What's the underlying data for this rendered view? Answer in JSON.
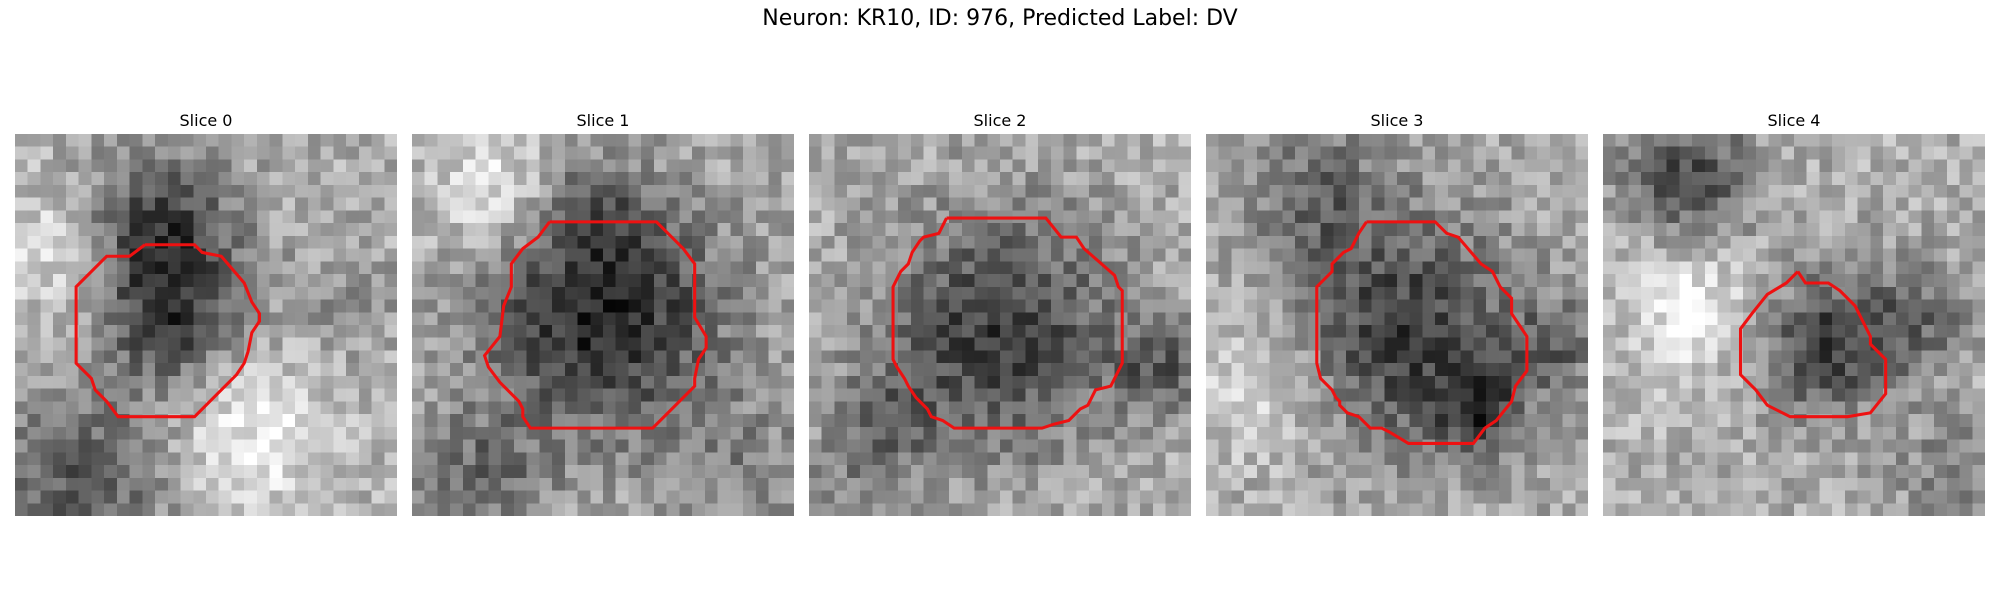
{
  "figure": {
    "title": "Neuron: KR10, ID: 976, Predicted Label: DV"
  },
  "panels": [
    {
      "title": "Slice 0",
      "seed": 11,
      "blobs": [
        [
          0.38,
          0.25,
          0.14,
          -0.45
        ],
        [
          0.42,
          0.5,
          0.13,
          -0.4
        ],
        [
          0.18,
          0.9,
          0.16,
          -0.35
        ],
        [
          0.62,
          0.78,
          0.16,
          0.25
        ],
        [
          0.85,
          0.45,
          0.12,
          -0.1
        ],
        [
          0.1,
          0.3,
          0.12,
          0.2
        ]
      ],
      "contour": [
        [
          0.34,
          0.29
        ],
        [
          0.47,
          0.29
        ],
        [
          0.49,
          0.31
        ],
        [
          0.54,
          0.32
        ],
        [
          0.6,
          0.39
        ],
        [
          0.62,
          0.44
        ],
        [
          0.64,
          0.47
        ],
        [
          0.64,
          0.49
        ],
        [
          0.62,
          0.52
        ],
        [
          0.61,
          0.57
        ],
        [
          0.6,
          0.6
        ],
        [
          0.58,
          0.63
        ],
        [
          0.47,
          0.74
        ],
        [
          0.27,
          0.74
        ],
        [
          0.24,
          0.7
        ],
        [
          0.22,
          0.68
        ],
        [
          0.21,
          0.67
        ],
        [
          0.2,
          0.64
        ],
        [
          0.16,
          0.6
        ],
        [
          0.16,
          0.4
        ],
        [
          0.24,
          0.32
        ],
        [
          0.3,
          0.32
        ],
        [
          0.34,
          0.29
        ]
      ]
    },
    {
      "title": "Slice 1",
      "seed": 23,
      "blobs": [
        [
          0.5,
          0.47,
          0.22,
          -0.55
        ],
        [
          0.48,
          0.18,
          0.08,
          -0.2
        ],
        [
          0.18,
          0.9,
          0.12,
          -0.25
        ],
        [
          0.88,
          0.88,
          0.14,
          -0.15
        ],
        [
          0.22,
          0.15,
          0.12,
          0.25
        ]
      ],
      "contour": [
        [
          0.36,
          0.23
        ],
        [
          0.64,
          0.23
        ],
        [
          0.71,
          0.3
        ],
        [
          0.74,
          0.34
        ],
        [
          0.74,
          0.48
        ],
        [
          0.77,
          0.53
        ],
        [
          0.77,
          0.56
        ],
        [
          0.75,
          0.59
        ],
        [
          0.74,
          0.64
        ],
        [
          0.74,
          0.66
        ],
        [
          0.63,
          0.77
        ],
        [
          0.31,
          0.77
        ],
        [
          0.29,
          0.74
        ],
        [
          0.29,
          0.72
        ],
        [
          0.28,
          0.7
        ],
        [
          0.23,
          0.65
        ],
        [
          0.2,
          0.61
        ],
        [
          0.19,
          0.58
        ],
        [
          0.23,
          0.53
        ],
        [
          0.24,
          0.45
        ],
        [
          0.26,
          0.4
        ],
        [
          0.26,
          0.34
        ],
        [
          0.29,
          0.3
        ],
        [
          0.33,
          0.27
        ],
        [
          0.36,
          0.23
        ]
      ]
    },
    {
      "title": "Slice 2",
      "seed": 37,
      "blobs": [
        [
          0.5,
          0.52,
          0.22,
          -0.45
        ],
        [
          0.92,
          0.62,
          0.08,
          -0.3
        ],
        [
          0.2,
          0.75,
          0.1,
          -0.2
        ],
        [
          0.1,
          0.9,
          0.1,
          -0.1
        ]
      ],
      "contour": [
        [
          0.36,
          0.22
        ],
        [
          0.62,
          0.22
        ],
        [
          0.66,
          0.27
        ],
        [
          0.7,
          0.27
        ],
        [
          0.72,
          0.3
        ],
        [
          0.8,
          0.37
        ],
        [
          0.81,
          0.4
        ],
        [
          0.82,
          0.41
        ],
        [
          0.82,
          0.6
        ],
        [
          0.8,
          0.64
        ],
        [
          0.79,
          0.66
        ],
        [
          0.75,
          0.67
        ],
        [
          0.74,
          0.69
        ],
        [
          0.73,
          0.71
        ],
        [
          0.71,
          0.72
        ],
        [
          0.68,
          0.75
        ],
        [
          0.64,
          0.76
        ],
        [
          0.61,
          0.77
        ],
        [
          0.38,
          0.77
        ],
        [
          0.35,
          0.75
        ],
        [
          0.32,
          0.74
        ],
        [
          0.31,
          0.72
        ],
        [
          0.28,
          0.69
        ],
        [
          0.26,
          0.66
        ],
        [
          0.25,
          0.64
        ],
        [
          0.23,
          0.61
        ],
        [
          0.22,
          0.59
        ],
        [
          0.22,
          0.4
        ],
        [
          0.23,
          0.38
        ],
        [
          0.24,
          0.36
        ],
        [
          0.26,
          0.34
        ],
        [
          0.27,
          0.31
        ],
        [
          0.29,
          0.28
        ],
        [
          0.3,
          0.27
        ],
        [
          0.34,
          0.26
        ],
        [
          0.36,
          0.22
        ]
      ]
    },
    {
      "title": "Slice 3",
      "seed": 53,
      "blobs": [
        [
          0.52,
          0.52,
          0.22,
          -0.45
        ],
        [
          0.72,
          0.72,
          0.08,
          -0.35
        ],
        [
          0.3,
          0.15,
          0.12,
          -0.25
        ],
        [
          0.92,
          0.55,
          0.08,
          -0.25
        ],
        [
          0.15,
          0.65,
          0.14,
          0.2
        ]
      ],
      "contour": [
        [
          0.42,
          0.23
        ],
        [
          0.6,
          0.23
        ],
        [
          0.63,
          0.26
        ],
        [
          0.66,
          0.27
        ],
        [
          0.72,
          0.34
        ],
        [
          0.75,
          0.36
        ],
        [
          0.77,
          0.4
        ],
        [
          0.8,
          0.43
        ],
        [
          0.8,
          0.47
        ],
        [
          0.82,
          0.5
        ],
        [
          0.84,
          0.53
        ],
        [
          0.84,
          0.62
        ],
        [
          0.81,
          0.66
        ],
        [
          0.8,
          0.7
        ],
        [
          0.76,
          0.75
        ],
        [
          0.73,
          0.77
        ],
        [
          0.7,
          0.81
        ],
        [
          0.53,
          0.81
        ],
        [
          0.48,
          0.78
        ],
        [
          0.46,
          0.77
        ],
        [
          0.43,
          0.77
        ],
        [
          0.4,
          0.74
        ],
        [
          0.37,
          0.73
        ],
        [
          0.35,
          0.71
        ],
        [
          0.35,
          0.7
        ],
        [
          0.34,
          0.69
        ],
        [
          0.33,
          0.67
        ],
        [
          0.3,
          0.64
        ],
        [
          0.29,
          0.6
        ],
        [
          0.29,
          0.4
        ],
        [
          0.33,
          0.36
        ],
        [
          0.33,
          0.34
        ],
        [
          0.36,
          0.31
        ],
        [
          0.38,
          0.3
        ],
        [
          0.4,
          0.26
        ],
        [
          0.42,
          0.23
        ]
      ]
    },
    {
      "title": "Slice 4",
      "seed": 71,
      "blobs": [
        [
          0.58,
          0.55,
          0.13,
          -0.45
        ],
        [
          0.23,
          0.12,
          0.12,
          -0.4
        ],
        [
          0.82,
          0.48,
          0.1,
          -0.25
        ],
        [
          0.92,
          0.9,
          0.1,
          -0.2
        ],
        [
          0.25,
          0.45,
          0.14,
          0.25
        ]
      ],
      "contour": [
        [
          0.51,
          0.36
        ],
        [
          0.53,
          0.39
        ],
        [
          0.59,
          0.39
        ],
        [
          0.62,
          0.41
        ],
        [
          0.66,
          0.45
        ],
        [
          0.7,
          0.53
        ],
        [
          0.7,
          0.55
        ],
        [
          0.74,
          0.59
        ],
        [
          0.74,
          0.68
        ],
        [
          0.7,
          0.73
        ],
        [
          0.64,
          0.74
        ],
        [
          0.49,
          0.74
        ],
        [
          0.43,
          0.71
        ],
        [
          0.4,
          0.67
        ],
        [
          0.36,
          0.63
        ],
        [
          0.36,
          0.51
        ],
        [
          0.39,
          0.47
        ],
        [
          0.43,
          0.42
        ],
        [
          0.48,
          0.39
        ],
        [
          0.51,
          0.36
        ]
      ]
    }
  ]
}
